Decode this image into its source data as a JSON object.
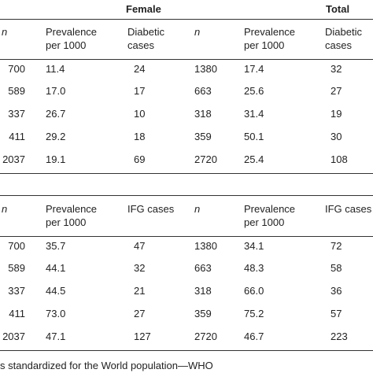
{
  "header": {
    "female": "Female",
    "total": "Total"
  },
  "blocks": [
    {
      "columns": [
        "n",
        "Prevalence per 1000",
        "Diabetic cases",
        "n",
        "Prevalence per 1000",
        "Diabetic cases"
      ],
      "rows": [
        [
          "700",
          "11.4",
          "24",
          "1380",
          "17.4",
          "32"
        ],
        [
          "589",
          "17.0",
          "17",
          "663",
          "25.6",
          "27"
        ],
        [
          "337",
          "26.7",
          "10",
          "318",
          "31.4",
          "19"
        ],
        [
          "411",
          "29.2",
          "18",
          "359",
          "50.1",
          "30"
        ],
        [
          "2037",
          "19.1",
          "69",
          "2720",
          "25.4",
          "108"
        ]
      ]
    },
    {
      "columns": [
        "n",
        "Prevalence per 1000",
        "IFG cases",
        "n",
        "Prevalence per 1000",
        "IFG cases"
      ],
      "rows": [
        [
          "700",
          "35.7",
          "47",
          "1380",
          "34.1",
          "72"
        ],
        [
          "589",
          "44.1",
          "32",
          "663",
          "48.3",
          "58"
        ],
        [
          "337",
          "44.5",
          "21",
          "318",
          "66.0",
          "36"
        ],
        [
          "411",
          "73.0",
          "27",
          "359",
          "75.2",
          "57"
        ],
        [
          "2037",
          "47.1",
          "127",
          "2720",
          "46.7",
          "223"
        ]
      ]
    }
  ],
  "footnote": "s standardized for the World population—WHO"
}
